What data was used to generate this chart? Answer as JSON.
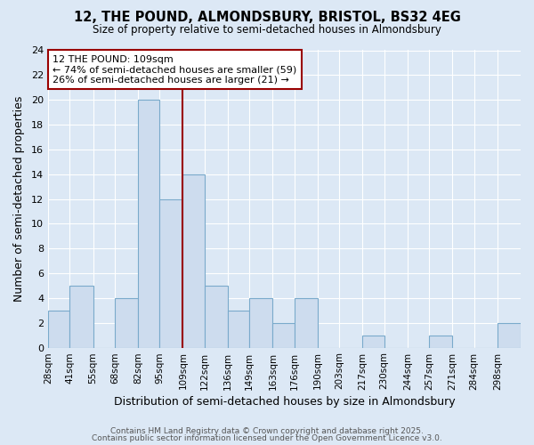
{
  "title": "12, THE POUND, ALMONDSBURY, BRISTOL, BS32 4EG",
  "subtitle": "Size of property relative to semi-detached houses in Almondsbury",
  "xlabel": "Distribution of semi-detached houses by size in Almondsbury",
  "ylabel": "Number of semi-detached properties",
  "bar_color": "#cddcee",
  "bar_edge_color": "#7aaacb",
  "background_color": "#dce8f5",
  "grid_color": "#ffffff",
  "annotation_text": "12 THE POUND: 109sqm\n← 74% of semi-detached houses are smaller (59)\n26% of semi-detached houses are larger (21) →",
  "vline_x": 109,
  "vline_color": "#990000",
  "categories": [
    "28sqm",
    "41sqm",
    "55sqm",
    "68sqm",
    "82sqm",
    "95sqm",
    "109sqm",
    "122sqm",
    "136sqm",
    "149sqm",
    "163sqm",
    "176sqm",
    "190sqm",
    "203sqm",
    "217sqm",
    "230sqm",
    "244sqm",
    "257sqm",
    "271sqm",
    "284sqm",
    "298sqm"
  ],
  "values": [
    3,
    5,
    0,
    4,
    20,
    12,
    14,
    5,
    3,
    4,
    2,
    4,
    0,
    0,
    1,
    0,
    0,
    1,
    0,
    0,
    2
  ],
  "label_values": [
    28,
    41,
    55,
    68,
    82,
    95,
    109,
    122,
    136,
    149,
    163,
    176,
    190,
    203,
    217,
    230,
    244,
    257,
    271,
    284,
    298
  ],
  "ylim": [
    0,
    24
  ],
  "yticks": [
    0,
    2,
    4,
    6,
    8,
    10,
    12,
    14,
    16,
    18,
    20,
    22,
    24
  ],
  "footer1": "Contains HM Land Registry data © Crown copyright and database right 2025.",
  "footer2": "Contains public sector information licensed under the Open Government Licence v3.0."
}
